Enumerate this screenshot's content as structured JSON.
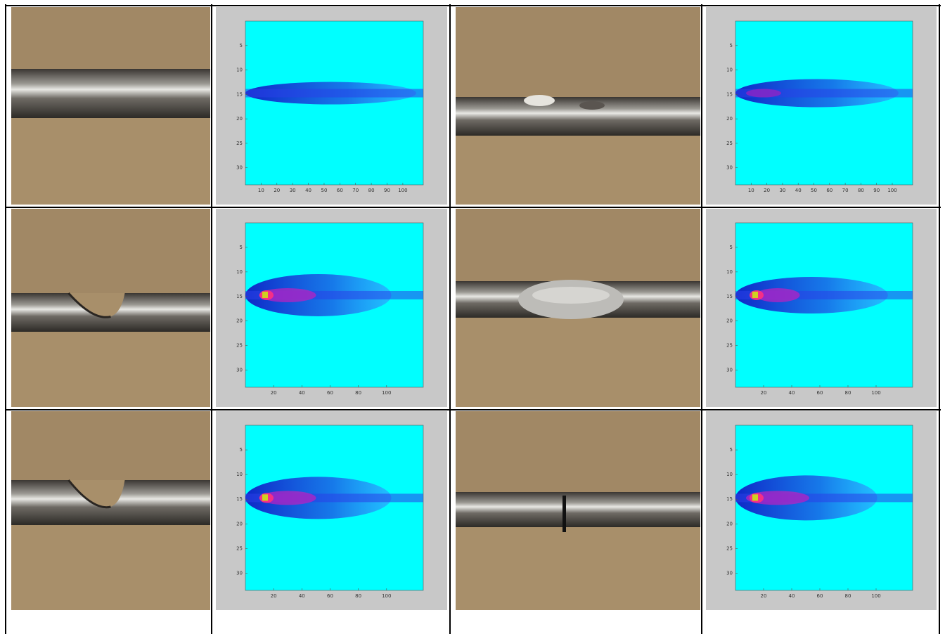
{
  "plots": [
    {
      "xticks": [
        10,
        20,
        30,
        40,
        50,
        60,
        70,
        80,
        90,
        100
      ],
      "yticks": [
        5,
        10,
        15,
        20,
        25,
        30
      ]
    },
    {
      "xticks": [
        10,
        20,
        30,
        40,
        50,
        60,
        70,
        80,
        90,
        100
      ],
      "yticks": [
        5,
        10,
        15,
        20,
        25,
        30
      ]
    },
    {
      "xticks": [
        20,
        40,
        60,
        80,
        100
      ],
      "yticks": [
        5,
        10,
        15,
        20,
        25,
        30
      ]
    },
    {
      "xticks": [
        20,
        40,
        60,
        80,
        100
      ],
      "yticks": [
        5,
        10,
        15,
        20,
        25,
        30
      ]
    },
    {
      "xticks": [
        20,
        40,
        60,
        80,
        100
      ],
      "yticks": [
        5,
        10,
        15,
        20,
        25,
        30
      ]
    },
    {
      "xticks": [
        20,
        40,
        60,
        80,
        100
      ],
      "yticks": [
        5,
        10,
        15,
        20,
        25,
        30
      ]
    }
  ]
}
